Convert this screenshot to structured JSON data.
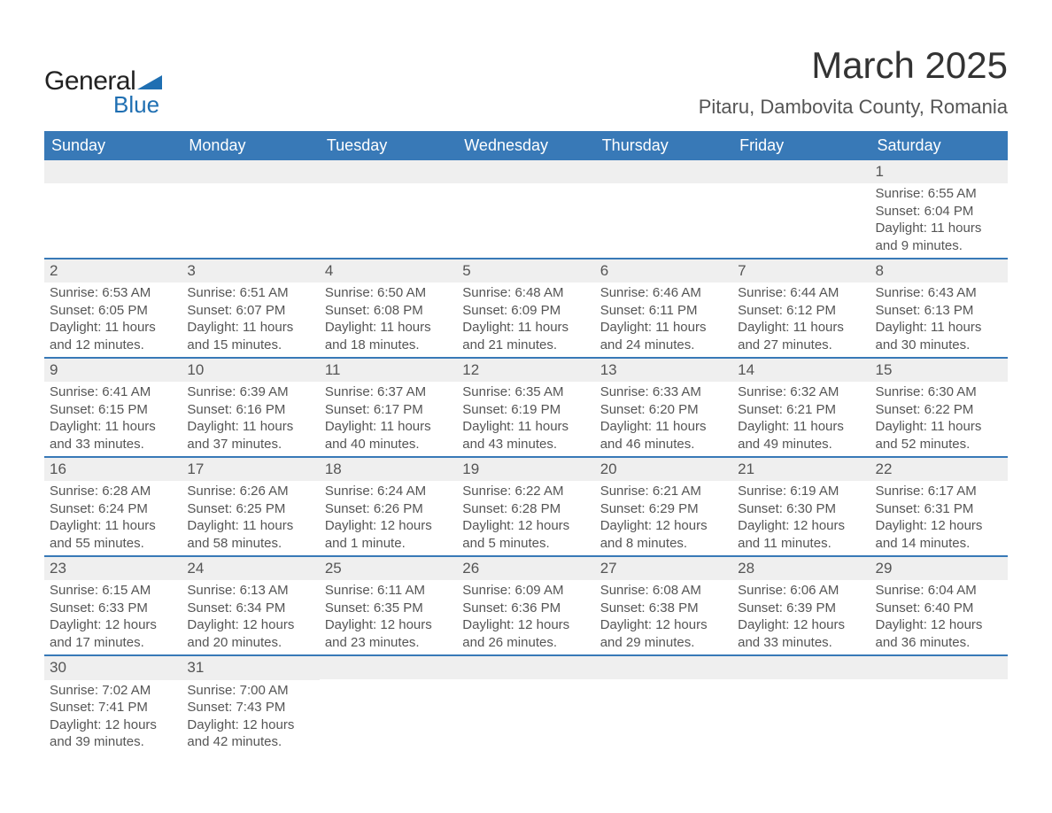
{
  "logo": {
    "text_a": "General",
    "text_b": "Blue",
    "triangle_color": "#1f6fb2"
  },
  "title": "March 2025",
  "location": "Pitaru, Dambovita County, Romania",
  "colors": {
    "header_bg": "#3879b7",
    "header_text": "#ffffff",
    "row_border": "#3879b7",
    "daynum_bg": "#efefef",
    "body_text": "#555555"
  },
  "days_of_week": [
    "Sunday",
    "Monday",
    "Tuesday",
    "Wednesday",
    "Thursday",
    "Friday",
    "Saturday"
  ],
  "weeks": [
    [
      {
        "n": "",
        "sr": "",
        "ss": "",
        "dl": ""
      },
      {
        "n": "",
        "sr": "",
        "ss": "",
        "dl": ""
      },
      {
        "n": "",
        "sr": "",
        "ss": "",
        "dl": ""
      },
      {
        "n": "",
        "sr": "",
        "ss": "",
        "dl": ""
      },
      {
        "n": "",
        "sr": "",
        "ss": "",
        "dl": ""
      },
      {
        "n": "",
        "sr": "",
        "ss": "",
        "dl": ""
      },
      {
        "n": "1",
        "sr": "Sunrise: 6:55 AM",
        "ss": "Sunset: 6:04 PM",
        "dl": "Daylight: 11 hours and 9 minutes."
      }
    ],
    [
      {
        "n": "2",
        "sr": "Sunrise: 6:53 AM",
        "ss": "Sunset: 6:05 PM",
        "dl": "Daylight: 11 hours and 12 minutes."
      },
      {
        "n": "3",
        "sr": "Sunrise: 6:51 AM",
        "ss": "Sunset: 6:07 PM",
        "dl": "Daylight: 11 hours and 15 minutes."
      },
      {
        "n": "4",
        "sr": "Sunrise: 6:50 AM",
        "ss": "Sunset: 6:08 PM",
        "dl": "Daylight: 11 hours and 18 minutes."
      },
      {
        "n": "5",
        "sr": "Sunrise: 6:48 AM",
        "ss": "Sunset: 6:09 PM",
        "dl": "Daylight: 11 hours and 21 minutes."
      },
      {
        "n": "6",
        "sr": "Sunrise: 6:46 AM",
        "ss": "Sunset: 6:11 PM",
        "dl": "Daylight: 11 hours and 24 minutes."
      },
      {
        "n": "7",
        "sr": "Sunrise: 6:44 AM",
        "ss": "Sunset: 6:12 PM",
        "dl": "Daylight: 11 hours and 27 minutes."
      },
      {
        "n": "8",
        "sr": "Sunrise: 6:43 AM",
        "ss": "Sunset: 6:13 PM",
        "dl": "Daylight: 11 hours and 30 minutes."
      }
    ],
    [
      {
        "n": "9",
        "sr": "Sunrise: 6:41 AM",
        "ss": "Sunset: 6:15 PM",
        "dl": "Daylight: 11 hours and 33 minutes."
      },
      {
        "n": "10",
        "sr": "Sunrise: 6:39 AM",
        "ss": "Sunset: 6:16 PM",
        "dl": "Daylight: 11 hours and 37 minutes."
      },
      {
        "n": "11",
        "sr": "Sunrise: 6:37 AM",
        "ss": "Sunset: 6:17 PM",
        "dl": "Daylight: 11 hours and 40 minutes."
      },
      {
        "n": "12",
        "sr": "Sunrise: 6:35 AM",
        "ss": "Sunset: 6:19 PM",
        "dl": "Daylight: 11 hours and 43 minutes."
      },
      {
        "n": "13",
        "sr": "Sunrise: 6:33 AM",
        "ss": "Sunset: 6:20 PM",
        "dl": "Daylight: 11 hours and 46 minutes."
      },
      {
        "n": "14",
        "sr": "Sunrise: 6:32 AM",
        "ss": "Sunset: 6:21 PM",
        "dl": "Daylight: 11 hours and 49 minutes."
      },
      {
        "n": "15",
        "sr": "Sunrise: 6:30 AM",
        "ss": "Sunset: 6:22 PM",
        "dl": "Daylight: 11 hours and 52 minutes."
      }
    ],
    [
      {
        "n": "16",
        "sr": "Sunrise: 6:28 AM",
        "ss": "Sunset: 6:24 PM",
        "dl": "Daylight: 11 hours and 55 minutes."
      },
      {
        "n": "17",
        "sr": "Sunrise: 6:26 AM",
        "ss": "Sunset: 6:25 PM",
        "dl": "Daylight: 11 hours and 58 minutes."
      },
      {
        "n": "18",
        "sr": "Sunrise: 6:24 AM",
        "ss": "Sunset: 6:26 PM",
        "dl": "Daylight: 12 hours and 1 minute."
      },
      {
        "n": "19",
        "sr": "Sunrise: 6:22 AM",
        "ss": "Sunset: 6:28 PM",
        "dl": "Daylight: 12 hours and 5 minutes."
      },
      {
        "n": "20",
        "sr": "Sunrise: 6:21 AM",
        "ss": "Sunset: 6:29 PM",
        "dl": "Daylight: 12 hours and 8 minutes."
      },
      {
        "n": "21",
        "sr": "Sunrise: 6:19 AM",
        "ss": "Sunset: 6:30 PM",
        "dl": "Daylight: 12 hours and 11 minutes."
      },
      {
        "n": "22",
        "sr": "Sunrise: 6:17 AM",
        "ss": "Sunset: 6:31 PM",
        "dl": "Daylight: 12 hours and 14 minutes."
      }
    ],
    [
      {
        "n": "23",
        "sr": "Sunrise: 6:15 AM",
        "ss": "Sunset: 6:33 PM",
        "dl": "Daylight: 12 hours and 17 minutes."
      },
      {
        "n": "24",
        "sr": "Sunrise: 6:13 AM",
        "ss": "Sunset: 6:34 PM",
        "dl": "Daylight: 12 hours and 20 minutes."
      },
      {
        "n": "25",
        "sr": "Sunrise: 6:11 AM",
        "ss": "Sunset: 6:35 PM",
        "dl": "Daylight: 12 hours and 23 minutes."
      },
      {
        "n": "26",
        "sr": "Sunrise: 6:09 AM",
        "ss": "Sunset: 6:36 PM",
        "dl": "Daylight: 12 hours and 26 minutes."
      },
      {
        "n": "27",
        "sr": "Sunrise: 6:08 AM",
        "ss": "Sunset: 6:38 PM",
        "dl": "Daylight: 12 hours and 29 minutes."
      },
      {
        "n": "28",
        "sr": "Sunrise: 6:06 AM",
        "ss": "Sunset: 6:39 PM",
        "dl": "Daylight: 12 hours and 33 minutes."
      },
      {
        "n": "29",
        "sr": "Sunrise: 6:04 AM",
        "ss": "Sunset: 6:40 PM",
        "dl": "Daylight: 12 hours and 36 minutes."
      }
    ],
    [
      {
        "n": "30",
        "sr": "Sunrise: 7:02 AM",
        "ss": "Sunset: 7:41 PM",
        "dl": "Daylight: 12 hours and 39 minutes."
      },
      {
        "n": "31",
        "sr": "Sunrise: 7:00 AM",
        "ss": "Sunset: 7:43 PM",
        "dl": "Daylight: 12 hours and 42 minutes."
      },
      {
        "n": "",
        "sr": "",
        "ss": "",
        "dl": ""
      },
      {
        "n": "",
        "sr": "",
        "ss": "",
        "dl": ""
      },
      {
        "n": "",
        "sr": "",
        "ss": "",
        "dl": ""
      },
      {
        "n": "",
        "sr": "",
        "ss": "",
        "dl": ""
      },
      {
        "n": "",
        "sr": "",
        "ss": "",
        "dl": ""
      }
    ]
  ]
}
